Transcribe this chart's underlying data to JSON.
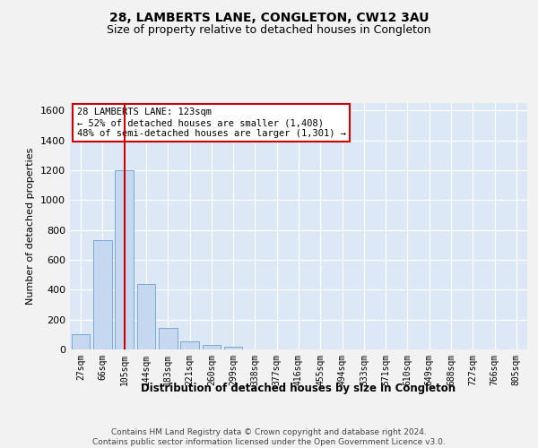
{
  "title": "28, LAMBERTS LANE, CONGLETON, CW12 3AU",
  "subtitle": "Size of property relative to detached houses in Congleton",
  "xlabel": "Distribution of detached houses by size in Congleton",
  "ylabel": "Number of detached properties",
  "bar_color": "#c5d8ef",
  "bar_edge_color": "#7aaad0",
  "background_color": "#dce8f5",
  "grid_color": "#ffffff",
  "vline_color": "#cc0000",
  "vline_x_index": 2,
  "annotation_text": "28 LAMBERTS LANE: 123sqm\n← 52% of detached houses are smaller (1,408)\n48% of semi-detached houses are larger (1,301) →",
  "annotation_box_facecolor": "#ffffff",
  "annotation_box_edgecolor": "#cc0000",
  "footer_text": "Contains HM Land Registry data © Crown copyright and database right 2024.\nContains public sector information licensed under the Open Government Licence v3.0.",
  "categories": [
    "27sqm",
    "66sqm",
    "105sqm",
    "144sqm",
    "183sqm",
    "221sqm",
    "260sqm",
    "299sqm",
    "338sqm",
    "377sqm",
    "416sqm",
    "455sqm",
    "494sqm",
    "533sqm",
    "571sqm",
    "610sqm",
    "649sqm",
    "688sqm",
    "727sqm",
    "766sqm",
    "805sqm"
  ],
  "values": [
    105,
    730,
    1200,
    440,
    145,
    55,
    33,
    18,
    0,
    0,
    0,
    0,
    0,
    0,
    0,
    0,
    0,
    0,
    0,
    0,
    0
  ],
  "ylim": [
    0,
    1650
  ],
  "yticks": [
    0,
    200,
    400,
    600,
    800,
    1000,
    1200,
    1400,
    1600
  ],
  "fig_facecolor": "#f2f2f2",
  "title_fontsize": 10,
  "subtitle_fontsize": 9
}
